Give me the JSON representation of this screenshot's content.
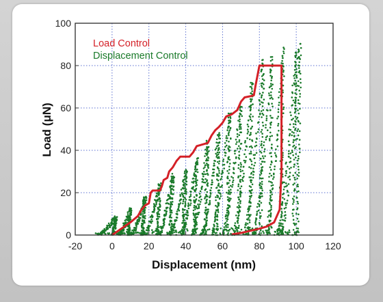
{
  "chart_data": {
    "type": "scatter",
    "xlabel": "Displacement (nm)",
    "ylabel": "Load (μN)",
    "xlim": [
      -20,
      120
    ],
    "ylim": [
      0,
      100
    ],
    "x_ticks": [
      "-20",
      "0",
      "20",
      "40",
      "60",
      "80",
      "100",
      "120"
    ],
    "y_ticks": [
      "0",
      "20",
      "40",
      "60",
      "80",
      "100"
    ],
    "grid": true,
    "legend_position": "top-left",
    "series": [
      {
        "name": "Load Control",
        "color": "#d42027",
        "style": "line",
        "points": [
          [
            0,
            0
          ],
          [
            5,
            3
          ],
          [
            10,
            6
          ],
          [
            14,
            9
          ],
          [
            16,
            12
          ],
          [
            18,
            14
          ],
          [
            20,
            15
          ],
          [
            21,
            20
          ],
          [
            22,
            21
          ],
          [
            26,
            21
          ],
          [
            27,
            23
          ],
          [
            28,
            26
          ],
          [
            30,
            27
          ],
          [
            31,
            30
          ],
          [
            33,
            32
          ],
          [
            35,
            35
          ],
          [
            37,
            37
          ],
          [
            42,
            37
          ],
          [
            44,
            39
          ],
          [
            46,
            42
          ],
          [
            48,
            42.5
          ],
          [
            52,
            43.5
          ],
          [
            54,
            47
          ],
          [
            56,
            49.5
          ],
          [
            58,
            51
          ],
          [
            60,
            53
          ],
          [
            62,
            56
          ],
          [
            65,
            57
          ],
          [
            68,
            59
          ],
          [
            70,
            63
          ],
          [
            72,
            65
          ],
          [
            75,
            65.5
          ],
          [
            77,
            66
          ],
          [
            78,
            71
          ],
          [
            80,
            80
          ],
          [
            92,
            80
          ],
          [
            92,
            30
          ],
          [
            91,
            12
          ],
          [
            88,
            6
          ],
          [
            84,
            4
          ],
          [
            80,
            3
          ],
          [
            75,
            2
          ],
          [
            70,
            1
          ],
          [
            65,
            0.3
          ]
        ]
      },
      {
        "name": "Displacement Control",
        "color": "#1a7a2a",
        "style": "scatter",
        "loops": [
          {
            "x0": -10,
            "x1": 2,
            "peak": 8,
            "back": 3
          },
          {
            "x0": 2,
            "x1": 10,
            "peak": 12,
            "back": 4
          },
          {
            "x0": 9,
            "x1": 18,
            "peak": 18,
            "back": 5
          },
          {
            "x0": 16,
            "x1": 26,
            "peak": 24,
            "back": 6
          },
          {
            "x0": 24,
            "x1": 33,
            "peak": 28,
            "back": 6
          },
          {
            "x0": 30,
            "x1": 40,
            "peak": 30,
            "back": 7
          },
          {
            "x0": 36,
            "x1": 46,
            "peak": 36,
            "back": 7
          },
          {
            "x0": 42,
            "x1": 52,
            "peak": 44,
            "back": 8
          },
          {
            "x0": 47,
            "x1": 58,
            "peak": 48,
            "back": 8
          },
          {
            "x0": 52,
            "x1": 64,
            "peak": 58,
            "back": 8
          },
          {
            "x0": 58,
            "x1": 70,
            "peak": 62,
            "back": 9
          },
          {
            "x0": 64,
            "x1": 76,
            "peak": 72,
            "back": 9
          },
          {
            "x0": 70,
            "x1": 82,
            "peak": 82,
            "back": 9
          },
          {
            "x0": 75,
            "x1": 87,
            "peak": 84,
            "back": 9
          },
          {
            "x0": 82,
            "x1": 93,
            "peak": 88,
            "back": 8
          },
          {
            "x0": 88,
            "x1": 100,
            "peak": 87,
            "back": 7
          },
          {
            "x0": 90,
            "x1": 102,
            "peak": 90,
            "back": 6
          }
        ]
      }
    ]
  }
}
